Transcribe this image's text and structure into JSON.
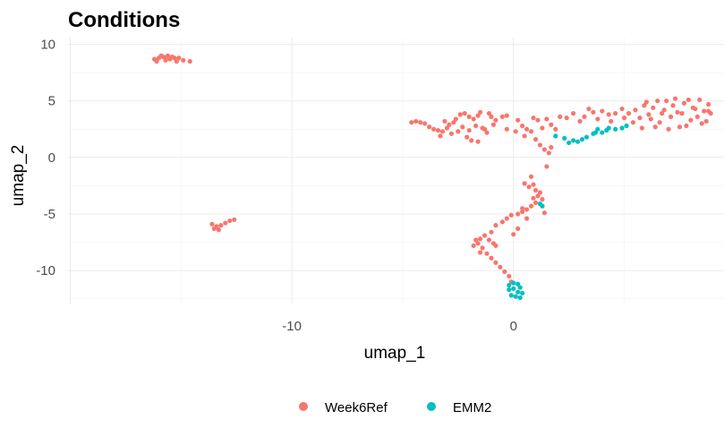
{
  "chart_data": {
    "type": "scatter",
    "title": "Conditions",
    "xlabel": "umap_1",
    "ylabel": "umap_2",
    "xlim": [
      -20.1,
      9.5
    ],
    "ylim": [
      -13.0,
      10.6
    ],
    "xticks": [
      -10,
      0
    ],
    "yticks": [
      10,
      5,
      0,
      -5,
      -10
    ],
    "grid": true,
    "legend_position": "bottom",
    "series": [
      {
        "name": "Week6Ref",
        "color": "#F8766D",
        "points": [
          [
            -16.2,
            8.7
          ],
          [
            -16.0,
            8.8
          ],
          [
            -15.9,
            9.0
          ],
          [
            -15.8,
            8.9
          ],
          [
            -15.7,
            8.6
          ],
          [
            -15.6,
            9.0
          ],
          [
            -15.5,
            8.7
          ],
          [
            -15.4,
            8.9
          ],
          [
            -15.3,
            8.8
          ],
          [
            -15.2,
            8.5
          ],
          [
            -15.1,
            8.8
          ],
          [
            -14.9,
            8.6
          ],
          [
            -14.6,
            8.5
          ],
          [
            -16.1,
            8.5
          ],
          [
            -15.7,
            8.8
          ],
          [
            -13.6,
            -5.9
          ],
          [
            -13.5,
            -6.3
          ],
          [
            -13.4,
            -6.1
          ],
          [
            -13.2,
            -6.0
          ],
          [
            -13.0,
            -5.8
          ],
          [
            -12.8,
            -5.6
          ],
          [
            -12.6,
            -5.5
          ],
          [
            -13.3,
            -6.4
          ],
          [
            -4.6,
            3.1
          ],
          [
            -4.4,
            3.2
          ],
          [
            -4.2,
            3.1
          ],
          [
            -4.0,
            3.0
          ],
          [
            -3.8,
            2.7
          ],
          [
            -3.6,
            2.5
          ],
          [
            -3.4,
            2.4
          ],
          [
            -3.2,
            2.3
          ],
          [
            -3.0,
            2.6
          ],
          [
            -2.8,
            2.1
          ],
          [
            -3.3,
            1.9
          ],
          [
            -2.9,
            2.9
          ],
          [
            -2.6,
            3.4
          ],
          [
            -2.4,
            3.8
          ],
          [
            -2.2,
            3.9
          ],
          [
            -2.0,
            3.6
          ],
          [
            -1.8,
            3.4
          ],
          [
            -1.6,
            3.7
          ],
          [
            -1.5,
            4.0
          ],
          [
            -1.7,
            2.8
          ],
          [
            -1.4,
            2.6
          ],
          [
            -1.2,
            2.2
          ],
          [
            -2.1,
            1.8
          ],
          [
            -1.9,
            1.5
          ],
          [
            -1.6,
            1.4
          ],
          [
            -1.3,
            2.5
          ],
          [
            -1.0,
            3.6
          ],
          [
            -0.8,
            3.3
          ],
          [
            -0.5,
            3.6
          ],
          [
            -0.3,
            3.7
          ],
          [
            -2.5,
            2.3
          ],
          [
            -2.3,
            2.7
          ],
          [
            -1.1,
            3.9
          ],
          [
            -2.7,
            3.1
          ],
          [
            -0.9,
            2.9
          ],
          [
            -3.1,
            3.2
          ],
          [
            -2.0,
            2.4
          ],
          [
            0.2,
            3.3
          ],
          [
            0.4,
            2.8
          ],
          [
            0.6,
            2.5
          ],
          [
            0.9,
            3.5
          ],
          [
            1.1,
            3.3
          ],
          [
            1.3,
            2.6
          ],
          [
            1.5,
            3.4
          ],
          [
            1.7,
            2.9
          ],
          [
            1.9,
            2.5
          ],
          [
            2.1,
            3.6
          ],
          [
            2.4,
            3.5
          ],
          [
            2.7,
            3.9
          ],
          [
            3.0,
            3.2
          ],
          [
            3.2,
            3.6
          ],
          [
            3.4,
            4.3
          ],
          [
            3.6,
            4.0
          ],
          [
            3.8,
            3.4
          ],
          [
            4.0,
            4.1
          ],
          [
            4.3,
            3.8
          ],
          [
            4.6,
            3.9
          ],
          [
            4.9,
            4.3
          ],
          [
            5.2,
            3.9
          ],
          [
            5.5,
            4.2
          ],
          [
            5.7,
            3.5
          ],
          [
            5.9,
            4.6
          ],
          [
            6.0,
            4.9
          ],
          [
            6.2,
            3.4
          ],
          [
            6.3,
            4.4
          ],
          [
            6.5,
            5.0
          ],
          [
            6.6,
            3.1
          ],
          [
            6.8,
            4.2
          ],
          [
            6.9,
            5.0
          ],
          [
            7.1,
            3.6
          ],
          [
            7.2,
            4.6
          ],
          [
            7.3,
            5.2
          ],
          [
            7.5,
            2.7
          ],
          [
            7.6,
            3.9
          ],
          [
            7.7,
            4.8
          ],
          [
            7.9,
            5.1
          ],
          [
            8.0,
            3.3
          ],
          [
            8.1,
            4.4
          ],
          [
            8.3,
            3.6
          ],
          [
            8.4,
            5.1
          ],
          [
            8.6,
            4.1
          ],
          [
            8.7,
            3.2
          ],
          [
            8.8,
            4.7
          ],
          [
            8.9,
            3.9
          ],
          [
            5.4,
            3.1
          ],
          [
            5.8,
            2.6
          ],
          [
            6.4,
            2.7
          ],
          [
            7.0,
            2.5
          ],
          [
            7.8,
            2.8
          ],
          [
            8.5,
            3.0
          ],
          [
            6.1,
            3.8
          ],
          [
            6.7,
            3.9
          ],
          [
            7.4,
            4.0
          ],
          [
            8.2,
            4.3
          ],
          [
            8.8,
            4.1
          ],
          [
            5.0,
            3.5
          ],
          [
            4.4,
            3.2
          ],
          [
            -0.3,
            2.5
          ],
          [
            0.1,
            2.3
          ],
          [
            0.5,
            1.9
          ],
          [
            0.8,
            2.3
          ],
          [
            1.0,
            1.6
          ],
          [
            1.2,
            1.1
          ],
          [
            1.4,
            0.7
          ],
          [
            1.6,
            0.4
          ],
          [
            1.7,
            0.9
          ],
          [
            1.5,
            -0.8
          ],
          [
            0.8,
            -1.7
          ],
          [
            0.5,
            -2.3
          ],
          [
            0.7,
            -2.6
          ],
          [
            0.9,
            -2.4
          ],
          [
            1.0,
            -2.9
          ],
          [
            1.2,
            -3.1
          ],
          [
            1.1,
            -3.4
          ],
          [
            0.9,
            -3.6
          ],
          [
            1.3,
            -3.7
          ],
          [
            1.0,
            -4.0
          ],
          [
            0.8,
            -4.3
          ],
          [
            0.6,
            -4.6
          ],
          [
            0.4,
            -4.8
          ],
          [
            0.2,
            -5.0
          ],
          [
            -0.1,
            -5.1
          ],
          [
            -0.3,
            -5.4
          ],
          [
            -0.5,
            -5.7
          ],
          [
            -0.8,
            -6.0
          ],
          [
            -1.0,
            -6.6
          ],
          [
            -1.3,
            -6.9
          ],
          [
            -1.5,
            -7.2
          ],
          [
            -1.6,
            -7.6
          ],
          [
            -1.4,
            -8.0
          ],
          [
            -1.2,
            -8.5
          ],
          [
            -1.0,
            -8.9
          ],
          [
            -0.8,
            -9.3
          ],
          [
            -0.6,
            -9.7
          ],
          [
            -0.4,
            -10.1
          ],
          [
            -0.2,
            -10.5
          ],
          [
            -0.1,
            -11.0
          ],
          [
            1.3,
            -4.3
          ],
          [
            1.4,
            -4.9
          ],
          [
            0.4,
            -4.5
          ],
          [
            -0.9,
            -7.6
          ],
          [
            -1.7,
            -7.3
          ],
          [
            -1.8,
            -7.8
          ],
          [
            -1.1,
            -7.3
          ],
          [
            -0.8,
            -7.8
          ],
          [
            -1.5,
            -8.4
          ],
          [
            0.0,
            -6.8
          ],
          [
            0.2,
            -6.3
          ],
          [
            0.6,
            -5.4
          ]
        ]
      },
      {
        "name": "EMM2",
        "color": "#00BFC4",
        "points": [
          [
            1.9,
            1.9
          ],
          [
            2.3,
            1.7
          ],
          [
            2.5,
            1.3
          ],
          [
            2.7,
            1.5
          ],
          [
            2.9,
            1.4
          ],
          [
            3.1,
            1.6
          ],
          [
            3.3,
            1.8
          ],
          [
            3.6,
            2.1
          ],
          [
            3.8,
            2.5
          ],
          [
            4.0,
            2.2
          ],
          [
            4.3,
            2.6
          ],
          [
            4.6,
            2.5
          ],
          [
            4.9,
            2.6
          ],
          [
            5.1,
            2.8
          ],
          [
            3.7,
            2.2
          ],
          [
            4.2,
            2.4
          ],
          [
            1.2,
            -4.1
          ],
          [
            1.3,
            -4.3
          ],
          [
            -0.2,
            -11.3
          ],
          [
            0.0,
            -11.6
          ],
          [
            0.2,
            -11.9
          ],
          [
            -0.1,
            -12.2
          ],
          [
            0.1,
            -12.3
          ],
          [
            0.3,
            -11.5
          ],
          [
            0.2,
            -11.2
          ],
          [
            0.4,
            -12.0
          ],
          [
            -0.2,
            -11.7
          ],
          [
            0.3,
            -12.4
          ],
          [
            0.0,
            -11.1
          ]
        ]
      }
    ]
  }
}
